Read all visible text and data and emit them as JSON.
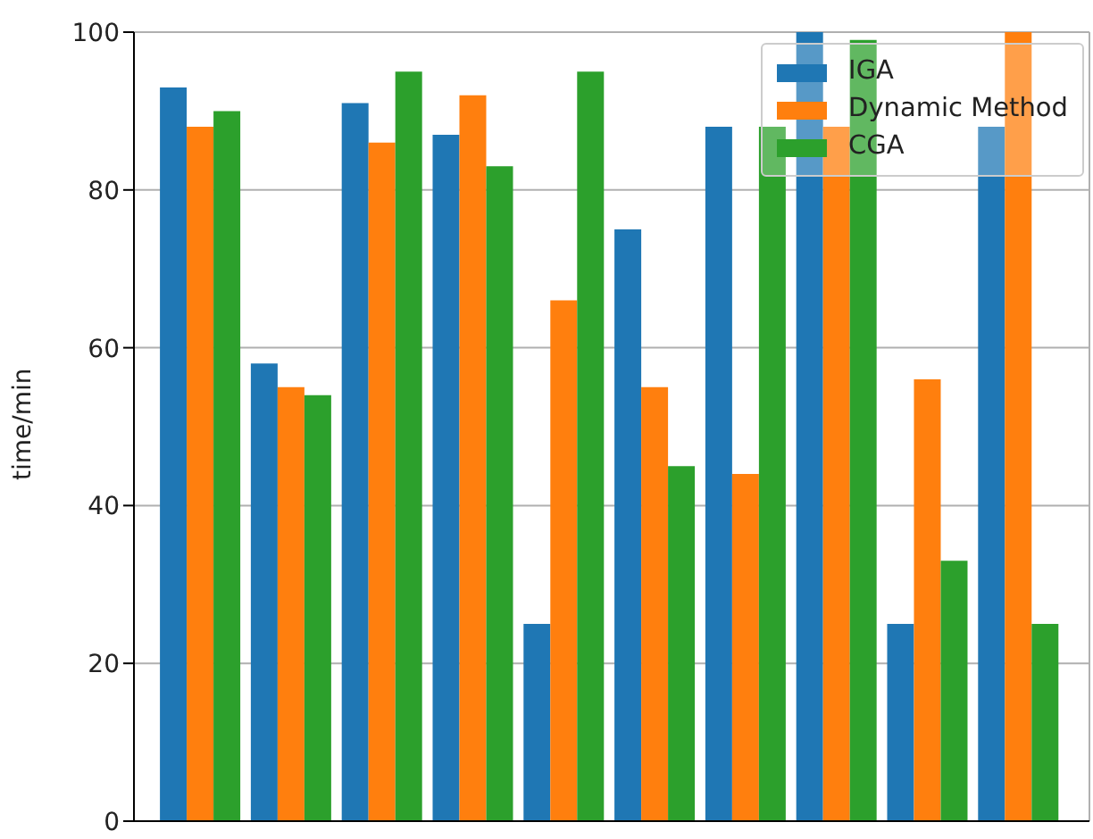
{
  "chart_data": {
    "type": "bar",
    "ylabel": "time/min",
    "categories": [
      null,
      null,
      null,
      null,
      null,
      null,
      null,
      null,
      null,
      null
    ],
    "series": [
      {
        "name": "IGA",
        "color": "#1f77b4",
        "values": [
          93,
          58,
          91,
          87,
          25,
          75,
          88,
          100,
          25,
          88
        ]
      },
      {
        "name": "Dynamic Method",
        "color": "#ff7f0e",
        "values": [
          88,
          55,
          86,
          92,
          66,
          55,
          44,
          88,
          56,
          100
        ]
      },
      {
        "name": "CGA",
        "color": "#2ca02c",
        "values": [
          90,
          54,
          95,
          83,
          95,
          45,
          88,
          99,
          33,
          25
        ]
      }
    ],
    "ylim": [
      0,
      100
    ],
    "yticks": [
      0,
      20,
      40,
      60,
      80,
      100
    ],
    "grid": true,
    "legend": "top right",
    "tick_labels": "y"
  }
}
